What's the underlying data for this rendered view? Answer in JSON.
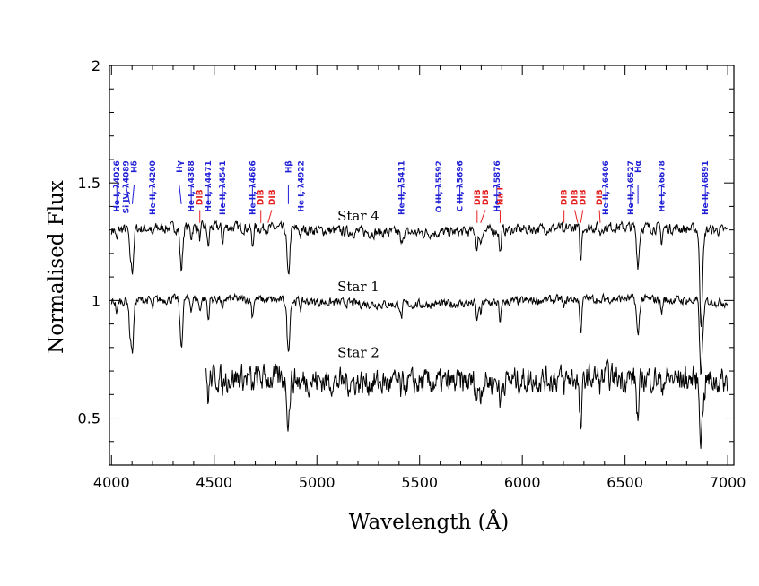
{
  "chart_data": {
    "type": "line",
    "xlabel": "Wavelength (Å)",
    "ylabel": "Normalised Flux",
    "xlim": [
      3990,
      7030
    ],
    "ylim": [
      0.3,
      2.0
    ],
    "x_ticks": [
      4000,
      4500,
      5000,
      5500,
      6000,
      6500,
      7000
    ],
    "y_ticks": [
      0.5,
      1,
      1.5,
      2
    ],
    "colors": {
      "spectrum": "#000000",
      "stellar_line": "#1f1fd6",
      "interstellar": "#e32020"
    },
    "series": [
      {
        "name": "Star 4",
        "name_pos": [
          5100,
          1.34
        ],
        "x_start": 4000,
        "x_end": 7000,
        "continuum": 1.3,
        "noise": 0.018
      },
      {
        "name": "Star 1",
        "name_pos": [
          5100,
          1.04
        ],
        "x_start": 4000,
        "x_end": 7000,
        "continuum": 0.995,
        "noise": 0.015
      },
      {
        "name": "Star 2",
        "name_pos": [
          5100,
          0.76
        ],
        "x_start": 4460,
        "x_end": 7000,
        "continuum": 0.66,
        "noise": 0.045
      }
    ],
    "absorption_lines": [
      {
        "x": 4026,
        "d": [
          0.05,
          0.05,
          0.04
        ]
      },
      {
        "x": 4089,
        "d": [
          0.08,
          0.1,
          0.05
        ]
      },
      {
        "x": 4101,
        "d": [
          0.18,
          0.22,
          0.1
        ]
      },
      {
        "x": 4200,
        "d": [
          0.04,
          0.04,
          0.03
        ]
      },
      {
        "x": 4340,
        "d": [
          0.18,
          0.2,
          0.15
        ]
      },
      {
        "x": 4388,
        "d": [
          0.04,
          0.04,
          0.03
        ]
      },
      {
        "x": 4430,
        "d": [
          0.05,
          0.05,
          0.05
        ]
      },
      {
        "x": 4471,
        "d": [
          0.09,
          0.09,
          0.09
        ]
      },
      {
        "x": 4541,
        "d": [
          0.06,
          0.06,
          0.05
        ]
      },
      {
        "x": 4686,
        "d": [
          0.08,
          0.07,
          0.06
        ]
      },
      {
        "x": 4861,
        "d": [
          0.21,
          0.22,
          0.18
        ]
      },
      {
        "x": 4922,
        "d": [
          0.03,
          0.03,
          0.03
        ]
      },
      {
        "x": 5411,
        "d": [
          0.06,
          0.06,
          0.05
        ]
      },
      {
        "x": 5780,
        "d": [
          0.08,
          0.08,
          0.08
        ]
      },
      {
        "x": 5797,
        "d": [
          0.05,
          0.05,
          0.05
        ]
      },
      {
        "x": 5892,
        "d": [
          0.1,
          0.1,
          0.11
        ]
      },
      {
        "x": 6203,
        "d": [
          0.04,
          0.04,
          0.04
        ]
      },
      {
        "x": 6284,
        "d": [
          0.15,
          0.15,
          0.22
        ]
      },
      {
        "x": 6379,
        "d": [
          0.03,
          0.03,
          0.03
        ]
      },
      {
        "x": 6563,
        "d": [
          0.16,
          0.16,
          0.18
        ]
      },
      {
        "x": 6678,
        "d": [
          0.06,
          0.06,
          0.05
        ]
      },
      {
        "x": 6870,
        "d": [
          0.4,
          0.32,
          0.25
        ]
      },
      {
        "x": 6885,
        "d": [
          0.05,
          0.05,
          0.05
        ]
      }
    ],
    "stellar_line_labels": [
      {
        "x": 4026,
        "text": "He I, λ4026",
        "tick_to": 4026
      },
      {
        "x": 4070,
        "text": "Si IV, λ4089",
        "tick_to": 4089
      },
      {
        "x": 4110,
        "text": "Hδ",
        "tick_to": 4101
      },
      {
        "x": 4200,
        "text": "He II, λ4200",
        "tick_to": 4200
      },
      {
        "x": 4330,
        "text": "Hγ",
        "tick_to": 4340
      },
      {
        "x": 4388,
        "text": "He I, λ4388",
        "tick_to": 4388
      },
      {
        "x": 4471,
        "text": "He I, λ4471",
        "tick_to": 4471
      },
      {
        "x": 4541,
        "text": "He II, λ4541",
        "tick_to": 4541
      },
      {
        "x": 4686,
        "text": "He II, λ4686",
        "tick_to": 4686
      },
      {
        "x": 4861,
        "text": "Hβ",
        "tick_to": 4861
      },
      {
        "x": 4922,
        "text": "He I, λ4922",
        "tick_to": 4922
      },
      {
        "x": 5411,
        "text": "He II, λ5411",
        "tick_to": 5411
      },
      {
        "x": 5592,
        "text": "O III, λ5592",
        "tick_to": 5592
      },
      {
        "x": 5696,
        "text": "C III, λ5696",
        "tick_to": 5696
      },
      {
        "x": 5876,
        "text": "He I, λ5876",
        "tick_to": 5876
      },
      {
        "x": 6406,
        "text": "He II, λ6406",
        "tick_to": 6406
      },
      {
        "x": 6527,
        "text": "He II, λ6527",
        "tick_to": 6527
      },
      {
        "x": 6563,
        "text": "Hα",
        "tick_to": 6563
      },
      {
        "x": 6678,
        "text": "He I, λ6678",
        "tick_to": 6678
      },
      {
        "x": 6891,
        "text": "He II, λ6891",
        "tick_to": 6891
      }
    ],
    "interstellar_labels": [
      {
        "x": 4430,
        "text": "DIB",
        "tick_to": 4430
      },
      {
        "x": 4727,
        "text": "DIB",
        "tick_to": 4727
      },
      {
        "x": 4780,
        "text": "DIB",
        "tick_to": 4762
      },
      {
        "x": 5780,
        "text": "DIB",
        "tick_to": 5780
      },
      {
        "x": 5820,
        "text": "DIB",
        "tick_to": 5797
      },
      {
        "x": 5892,
        "text": "Na I",
        "tick_to": 5892
      },
      {
        "x": 6203,
        "text": "DIB",
        "tick_to": 6203
      },
      {
        "x": 6255,
        "text": "DIB",
        "tick_to": 6270
      },
      {
        "x": 6295,
        "text": "DIB",
        "tick_to": 6284
      },
      {
        "x": 6375,
        "text": "DIB",
        "tick_to": 6379
      }
    ]
  }
}
